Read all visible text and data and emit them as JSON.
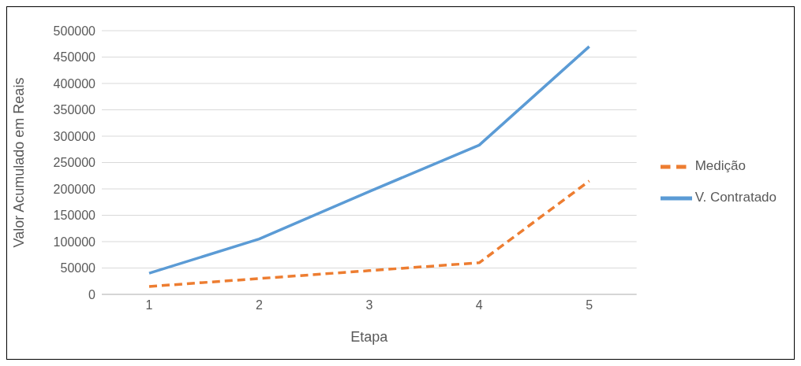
{
  "chart_data": {
    "type": "line",
    "xlabel": "Etapa",
    "ylabel": "Valor Acumulado em Reais",
    "categories": [
      "1",
      "2",
      "3",
      "4",
      "5"
    ],
    "series": [
      {
        "name": "V. Contratado",
        "color": "#5b9bd5",
        "line_style": "solid",
        "values": [
          40000,
          105000,
          195000,
          283000,
          470000
        ]
      },
      {
        "name": "Medição",
        "color": "#ed7d31",
        "line_style": "dashed",
        "values": [
          15000,
          30000,
          45000,
          60000,
          215000
        ]
      }
    ],
    "ylim": [
      0,
      500000
    ],
    "yticks": [
      0,
      50000,
      100000,
      150000,
      200000,
      250000,
      300000,
      350000,
      400000,
      450000,
      500000
    ],
    "grid": "y",
    "legend": "right",
    "marker": "none"
  }
}
